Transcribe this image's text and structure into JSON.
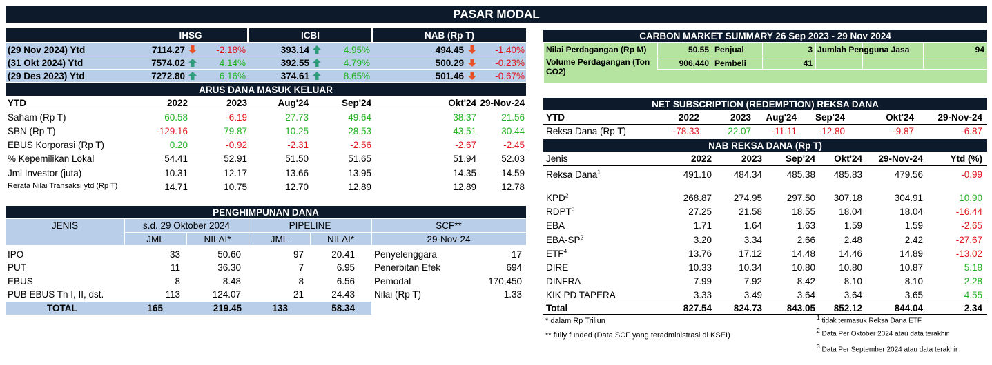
{
  "title": "PASAR MODAL",
  "market": {
    "cols": [
      "IHSG",
      "ICBI",
      "NAB (Rp T)"
    ],
    "rows": [
      {
        "label": "(29 Nov 2024) Ytd",
        "v1": "7114.27",
        "p1": "-2.18%",
        "v2": "393.14",
        "p2": "4.95%",
        "v3": "494.45",
        "p3": "-1.40%",
        "d1": "down",
        "d2": "up",
        "d3": "down"
      },
      {
        "label": "(31 Okt 2024) Ytd",
        "v1": "7574.02",
        "p1": "4.14%",
        "v2": "392.55",
        "p2": "4.79%",
        "v3": "500.29",
        "p3": "-0.23%",
        "d1": "up",
        "d2": "up",
        "d3": "down"
      },
      {
        "label": "(29 Des 2023) Ytd",
        "v1": "7272.80",
        "p1": "6.16%",
        "v2": "374.61",
        "p2": "8.65%",
        "v3": "501.46",
        "p3": "-0.67%",
        "d1": "up",
        "d2": "up",
        "d3": "down"
      }
    ]
  },
  "arus": {
    "title": "ARUS DANA MASUK KELUAR",
    "header": [
      "YTD",
      "2022",
      "2023",
      "Aug'24",
      "Sep'24",
      "Okt'24",
      "29-Nov-24"
    ],
    "rows": [
      {
        "label": "Saham (Rp T)",
        "v": [
          "60.58",
          "-6.19",
          "27.73",
          "49.64",
          "38.37",
          "21.56"
        ],
        "colored": true
      },
      {
        "label": "SBN (Rp T)",
        "v": [
          "-129.16",
          "79.87",
          "10.25",
          "28.53",
          "43.51",
          "30.44"
        ],
        "colored": true
      },
      {
        "label": "EBUS Korporasi (Rp T)",
        "v": [
          "0.20",
          "-0.92",
          "-2.31",
          "-2.56",
          "-2.67",
          "-2.45"
        ],
        "colored": true
      },
      {
        "label": "% Kepemilikan Lokal",
        "v": [
          "54.41",
          "52.91",
          "51.50",
          "51.65",
          "51.94",
          "52.03"
        ],
        "colored": false
      },
      {
        "label": "Jml Investor (juta)",
        "v": [
          "10.31",
          "12.17",
          "13.66",
          "13.95",
          "14.35",
          "14.59"
        ],
        "colored": false
      },
      {
        "label": "Rerata Nilai Transaksi ytd (Rp T)",
        "v": [
          "14.71",
          "10.75",
          "12.70",
          "12.89",
          "12.89",
          "12.78"
        ],
        "colored": false
      }
    ]
  },
  "penghimpunan": {
    "title": "PENGHIMPUNAN DANA",
    "jenis": "JENIS",
    "sd": "s.d. 29 Oktober 2024",
    "pipeline": "PIPELINE",
    "scf": "SCF**",
    "jml": "JML",
    "nilai": "NILAI*",
    "scf_date": "29-Nov-24",
    "rows": [
      {
        "label": "IPO",
        "a": "33",
        "b": "50.60",
        "c": "97",
        "d": "20.41",
        "sl": "Penyelenggara",
        "sv": "17"
      },
      {
        "label": "PUT",
        "a": "11",
        "b": "36.30",
        "c": "7",
        "d": "6.95",
        "sl": "Penerbitan Efek",
        "sv": "694"
      },
      {
        "label": "EBUS",
        "a": "8",
        "b": "8.48",
        "c": "8",
        "d": "6.56",
        "sl": "Pemodal",
        "sv": "170,450"
      },
      {
        "label": "PUB EBUS Th I, II, dst.",
        "a": "113",
        "b": "124.07",
        "c": "21",
        "d": "24.43",
        "sl": "Nilai (Rp T)",
        "sv": "1.33"
      }
    ],
    "total": {
      "label": "TOTAL",
      "a": "165",
      "b": "219.45",
      "c": "133",
      "d": "58.34"
    }
  },
  "carbon": {
    "title": "CARBON MARKET SUMMARY 26 Sep 2023 - 29 Nov 2024",
    "nilai_label": "Nilai Perdagangan (Rp M)",
    "nilai": "50.55",
    "penjual_label": "Penjual",
    "penjual": "3",
    "jumlah_label": "Jumlah Pengguna Jasa",
    "jumlah": "94",
    "volume_label": "Volume Perdagangan (Ton CO2)",
    "volume": "906,440",
    "pembeli_label": "Pembeli",
    "pembeli": "41"
  },
  "netsub": {
    "title": "NET SUBSCRIPTION (REDEMPTION) REKSA DANA",
    "header": [
      "YTD",
      "2022",
      "2023",
      "Aug'24",
      "Sep'24",
      "Okt'24",
      "29-Nov-24"
    ],
    "row": {
      "label": "Reksa Dana (Rp T)",
      "v": [
        "-78.33",
        "22.07",
        "-11.11",
        "-12.80",
        "-9.87",
        "-6.87"
      ]
    }
  },
  "nab": {
    "title": "NAB REKSA DANA (Rp T)",
    "header": [
      "Jenis",
      "2022",
      "2023",
      "Sep'24",
      "Okt'24",
      "29-Nov-24",
      "Ytd (%)"
    ],
    "rows": [
      {
        "label": "Reksa Dana",
        "sup": "1",
        "v": [
          "491.10",
          "484.34",
          "485.38",
          "485.83",
          "479.56"
        ],
        "ytd": "-0.99"
      },
      {
        "label": "KPD",
        "sup": "2",
        "v": [
          "268.87",
          "274.95",
          "297.50",
          "307.18",
          "304.91"
        ],
        "ytd": "10.90"
      },
      {
        "label": "RDPT",
        "sup": "3",
        "v": [
          "27.25",
          "21.58",
          "18.55",
          "18.04",
          "18.04"
        ],
        "ytd": "-16.44"
      },
      {
        "label": "EBA",
        "sup": "",
        "v": [
          "1.71",
          "1.64",
          "1.63",
          "1.59",
          "1.59"
        ],
        "ytd": "-2.65"
      },
      {
        "label": "EBA-SP",
        "sup": "2",
        "v": [
          "3.20",
          "3.34",
          "2.66",
          "2.48",
          "2.42"
        ],
        "ytd": "-27.67"
      },
      {
        "label": "ETF",
        "sup": "4",
        "v": [
          "13.76",
          "17.12",
          "14.48",
          "14.46",
          "14.89"
        ],
        "ytd": "-13.02"
      },
      {
        "label": "DIRE",
        "sup": "",
        "v": [
          "10.33",
          "10.34",
          "10.80",
          "10.80",
          "10.87"
        ],
        "ytd": "5.18"
      },
      {
        "label": "DINFRA",
        "sup": "",
        "v": [
          "7.99",
          "7.92",
          "8.42",
          "8.10",
          "8.10"
        ],
        "ytd": "2.28"
      },
      {
        "label": "KIK PD TAPERA",
        "sup": "",
        "v": [
          "3.33",
          "3.49",
          "3.64",
          "3.64",
          "3.65"
        ],
        "ytd": "4.55"
      }
    ],
    "total": {
      "label": "Total",
      "v": [
        "827.54",
        "824.73",
        "843.05",
        "852.12",
        "844.04"
      ],
      "ytd": "2.34"
    }
  },
  "notes": {
    "left1": "* dalam Rp Triliun",
    "left2": "** fully funded (Data SCF yang teradministrasi di KSEI)",
    "r1": "tidak termasuk Reksa Dana ETF",
    "r2": "Data Per Oktober 2024 atau data terakhir",
    "r3": "Data Per September 2024 atau data terakhir",
    "s1": "1",
    "s2": "2",
    "s3": "3"
  },
  "colors": {
    "dark": "#0c1a2b",
    "blue": "#b9cfe9",
    "green": "#b5e3a0",
    "pos": "#1fb31f",
    "neg": "#e0151c",
    "arrow_up": "#2e9e7a",
    "arrow_down": "#e8502a"
  }
}
